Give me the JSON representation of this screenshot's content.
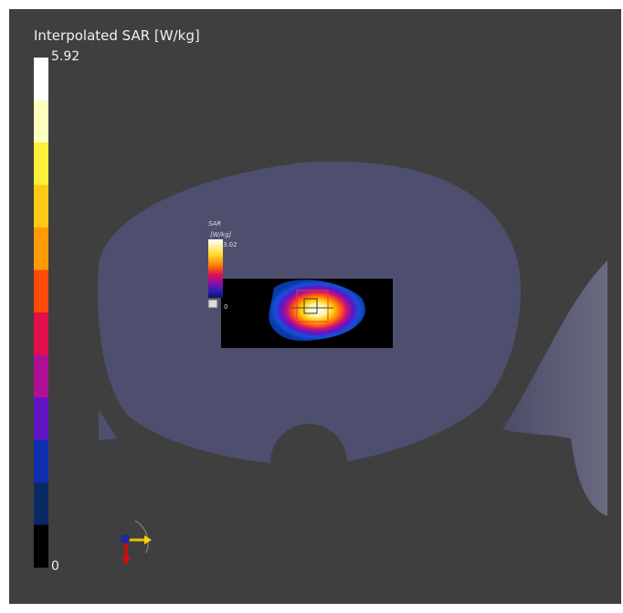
{
  "viewer": {
    "legend": {
      "title": "Interpolated SAR [W/kg]",
      "max_label": "5.92",
      "min_label": "0",
      "colors": [
        "#ffffff",
        "#ffffbf",
        "#ffee3a",
        "#ffc917",
        "#ff9a05",
        "#ff4b05",
        "#e1104a",
        "#ae1095",
        "#6213c4",
        "#0d2fb0",
        "#0a2a66",
        "#000000"
      ]
    },
    "inset_legend": {
      "title": "SAR",
      "unit": "[W/kg]",
      "max_label": "3.02",
      "min_label": "0"
    }
  }
}
